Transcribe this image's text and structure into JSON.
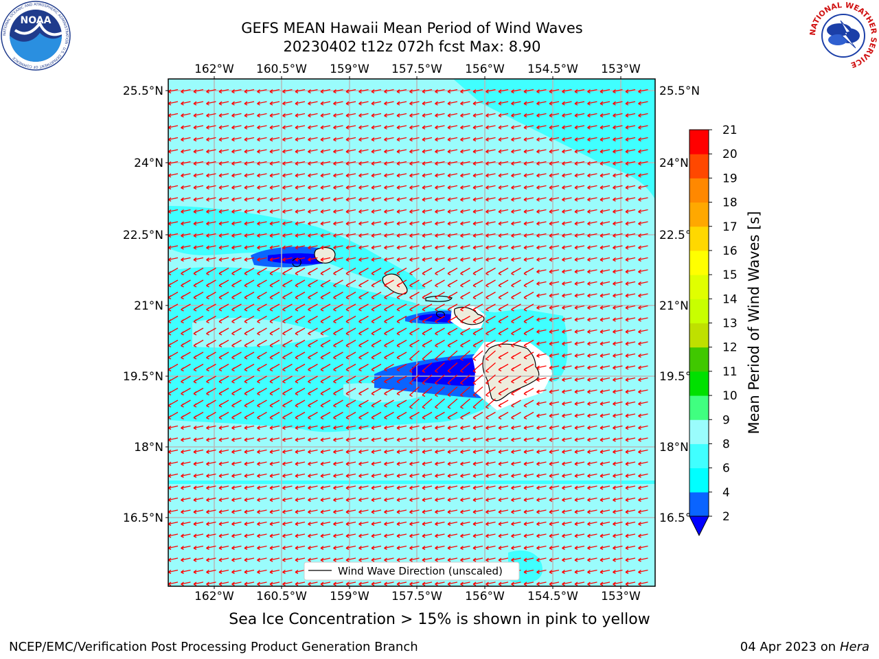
{
  "header": {
    "title_line1": "GEFS MEAN Hawaii Mean Period of Wind Waves",
    "title_line2": "20230402 t12z 072h fcst   Max: 8.90"
  },
  "logos": {
    "left": {
      "name": "NOAA",
      "text": "NOAA",
      "ring_text": "NATIONAL OCEANIC AND ATMOSPHERIC ADMINISTRATION · U.S. DEPARTMENT OF COMMERCE"
    },
    "right": {
      "name": "National Weather Service",
      "ring_text": "NATIONAL WEATHER SERVICE"
    }
  },
  "map": {
    "lon_ticks": [
      "162°W",
      "160.5°W",
      "159°W",
      "157.5°W",
      "156°W",
      "154.5°W",
      "153°W"
    ],
    "lat_ticks": [
      "25.5°N",
      "24°N",
      "22.5°N",
      "21°N",
      "19.5°N",
      "18°N",
      "16.5°N"
    ],
    "ocean_color": "#9afcfc",
    "arrow_color": "#ff0000",
    "arrow_direction": "toward west-southwest",
    "legend_label": "Wind Wave Direction (unscaled)"
  },
  "colorbar": {
    "label": "Mean Period of Wind Waves [s]",
    "tick_labels": [
      "2",
      "4",
      "6",
      "8",
      "9",
      "10",
      "11",
      "12",
      "13",
      "14",
      "15",
      "16",
      "17",
      "18",
      "19",
      "20",
      "21"
    ],
    "extend": "min",
    "under_color": "#0000ff",
    "colors": [
      "#0a64ff",
      "#00ffff",
      "#40ffff",
      "#9afcfc",
      "#40ff80",
      "#00e000",
      "#40c800",
      "#bfe000",
      "#c8ff00",
      "#e0ff00",
      "#ffff00",
      "#ffd800",
      "#ffa800",
      "#ff8800",
      "#ff4800",
      "#ff0000"
    ]
  },
  "note": "Sea Ice Concentration > 15% is shown in pink to yellow",
  "footer": {
    "left": "NCEP/EMC/Verification Post Processing Product Generation Branch",
    "date": "04 Apr 2023 on",
    "host": "Hera"
  }
}
